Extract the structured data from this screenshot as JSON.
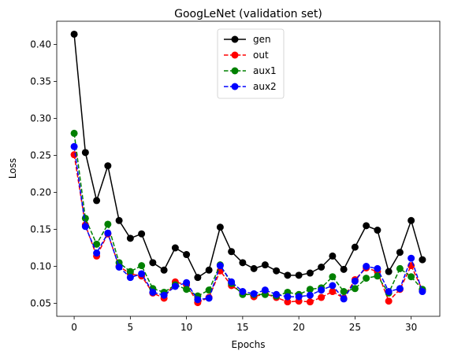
{
  "chart_data": {
    "type": "line",
    "title": "GoogLeNet (validation set)",
    "xlabel": "Epochs",
    "ylabel": "Loss",
    "xlim": [
      -1.55,
      32.55
    ],
    "ylim": [
      0.0325,
      0.4315
    ],
    "xticks": [
      0,
      5,
      10,
      15,
      20,
      25,
      30
    ],
    "yticks": [
      0.05,
      0.1,
      0.15,
      0.2,
      0.25,
      0.3,
      0.35,
      0.4
    ],
    "ytick_labels": [
      "0.05",
      "0.10",
      "0.15",
      "0.20",
      "0.25",
      "0.30",
      "0.35",
      "0.40"
    ],
    "grid": false,
    "legend_position": "upper-center",
    "x": [
      0,
      1,
      2,
      3,
      4,
      5,
      6,
      7,
      8,
      9,
      10,
      11,
      12,
      13,
      14,
      15,
      16,
      17,
      18,
      19,
      20,
      21,
      22,
      23,
      24,
      25,
      26,
      27,
      28,
      29,
      30,
      31
    ],
    "series": [
      {
        "name": "gen",
        "color": "#000000",
        "dash": "solid",
        "values": [
          0.414,
          0.254,
          0.189,
          0.236,
          0.162,
          0.138,
          0.144,
          0.105,
          0.095,
          0.125,
          0.116,
          0.085,
          0.095,
          0.153,
          0.12,
          0.105,
          0.097,
          0.102,
          0.094,
          0.088,
          0.088,
          0.091,
          0.099,
          0.114,
          0.096,
          0.126,
          0.155,
          0.149,
          0.093,
          0.119,
          0.162,
          0.109
        ]
      },
      {
        "name": "out",
        "color": "#ff0000",
        "dash": "dashed",
        "values": [
          0.251,
          0.156,
          0.114,
          0.144,
          0.1,
          0.09,
          0.087,
          0.064,
          0.057,
          0.079,
          0.075,
          0.051,
          0.058,
          0.094,
          0.074,
          0.064,
          0.059,
          0.063,
          0.058,
          0.052,
          0.053,
          0.052,
          0.058,
          0.066,
          0.057,
          0.082,
          0.098,
          0.093,
          0.053,
          0.069,
          0.101,
          0.068
        ]
      },
      {
        "name": "aux1",
        "color": "#008000",
        "dash": "dashed",
        "values": [
          0.28,
          0.165,
          0.13,
          0.157,
          0.105,
          0.093,
          0.101,
          0.07,
          0.065,
          0.075,
          0.069,
          0.06,
          0.068,
          0.102,
          0.077,
          0.062,
          0.062,
          0.062,
          0.06,
          0.065,
          0.062,
          0.069,
          0.071,
          0.086,
          0.066,
          0.07,
          0.084,
          0.087,
          0.064,
          0.097,
          0.086,
          0.069
        ]
      },
      {
        "name": "aux2",
        "color": "#0000ff",
        "dash": "dashed",
        "values": [
          0.262,
          0.154,
          0.118,
          0.145,
          0.099,
          0.085,
          0.09,
          0.065,
          0.061,
          0.073,
          0.078,
          0.055,
          0.057,
          0.101,
          0.079,
          0.066,
          0.063,
          0.068,
          0.062,
          0.059,
          0.059,
          0.061,
          0.068,
          0.074,
          0.056,
          0.08,
          0.1,
          0.097,
          0.066,
          0.07,
          0.111,
          0.066
        ]
      }
    ]
  }
}
